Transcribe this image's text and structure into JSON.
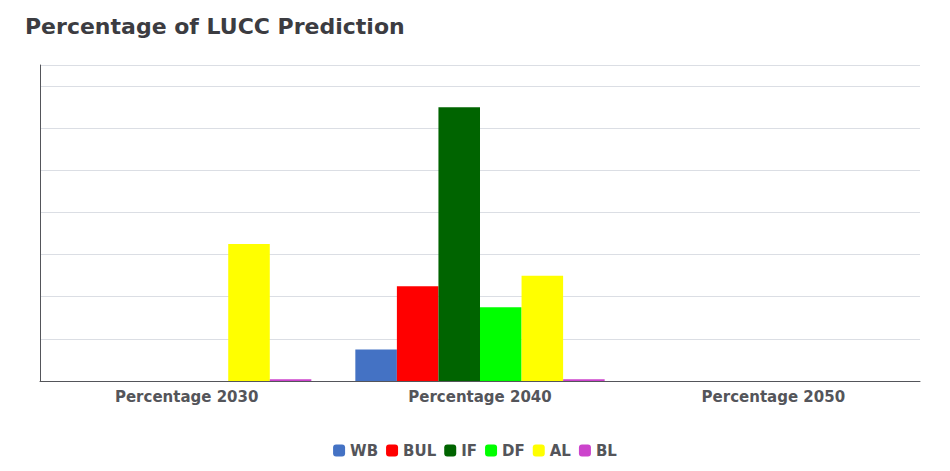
{
  "chart_data": {
    "type": "bar",
    "title": "Percentage of LUCC Prediction",
    "categories": [
      "Percentage 2030",
      "Percentage 2040",
      "Percentage 2050"
    ],
    "series": [
      {
        "name": "WB",
        "color": "#4472C4",
        "values": [
          0.0,
          1.5,
          0.0
        ]
      },
      {
        "name": "BUL",
        "color": "#FF0000",
        "values": [
          0.0,
          4.5,
          0.0
        ]
      },
      {
        "name": "IF",
        "color": "#006400",
        "values": [
          0.0,
          13.0,
          0.0
        ]
      },
      {
        "name": "DF",
        "color": "#00FF00",
        "values": [
          0.0,
          3.5,
          0.0
        ]
      },
      {
        "name": "AL",
        "color": "#FFFF00",
        "values": [
          6.5,
          5.0,
          0.0
        ]
      },
      {
        "name": "BL",
        "color": "#CC44CC",
        "values": [
          0.08,
          0.08,
          0.0
        ]
      }
    ],
    "ylim": [
      0,
      15
    ],
    "yticks": [
      0,
      2,
      4,
      6,
      8,
      10,
      12,
      14
    ],
    "grid": true,
    "legend": "bottom",
    "tick_labels": "x"
  }
}
